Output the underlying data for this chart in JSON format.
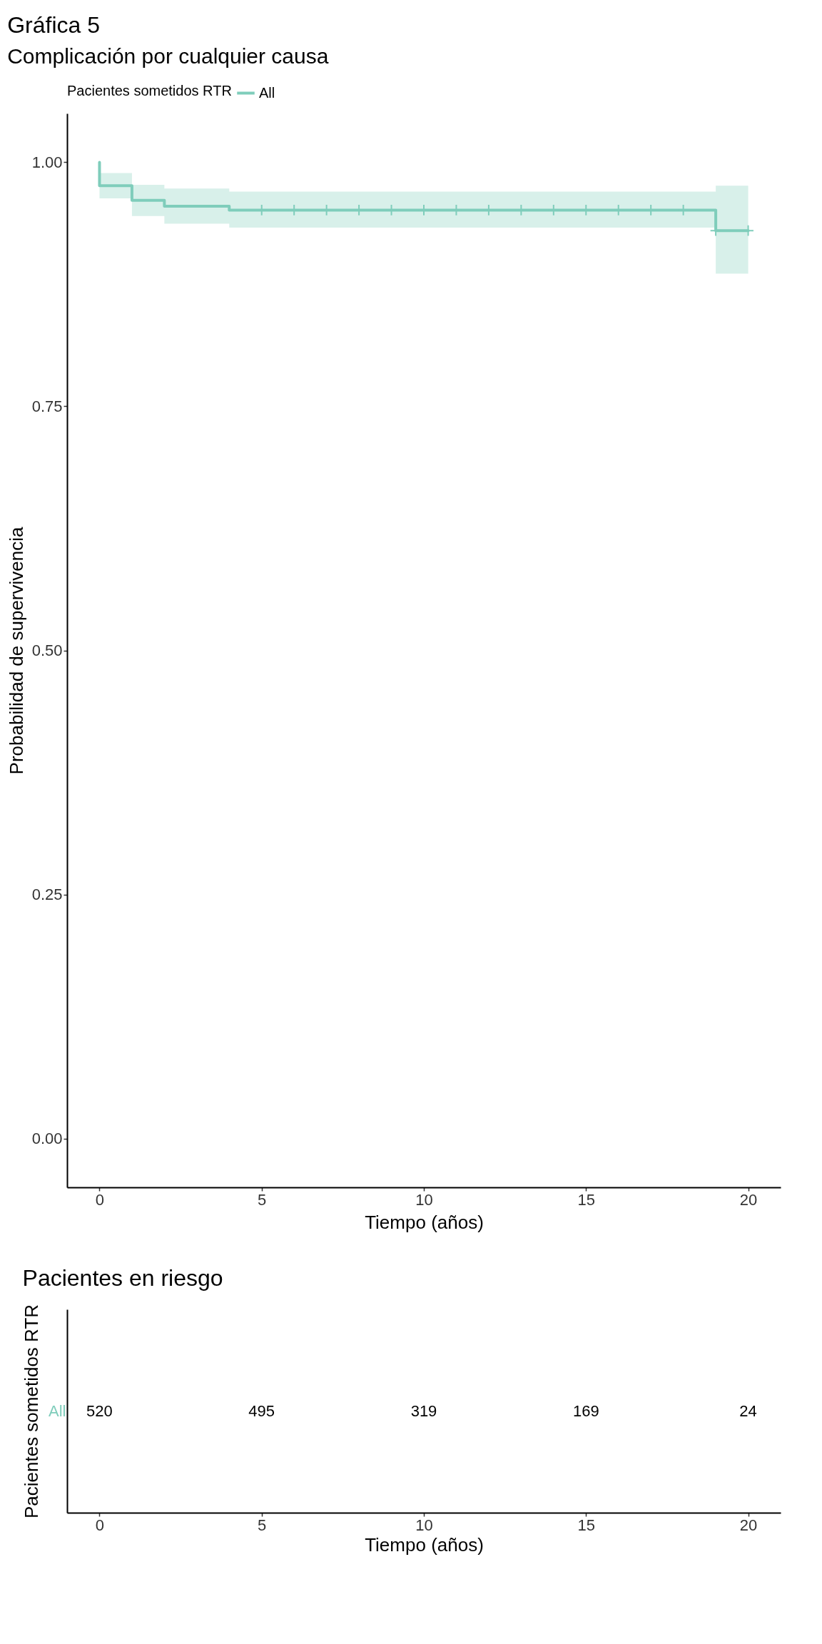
{
  "chart_data": [
    {
      "type": "step",
      "title": "Gráfica 5",
      "subtitle": "Complicación por cualquier causa",
      "xlabel": "Tiempo (años)",
      "ylabel": "Probabilidad de supervivencia",
      "legend_title": "Pacientes sometidos RTR",
      "legend": "top",
      "grid": false,
      "line_style": "solid",
      "xlim": [
        -1,
        21
      ],
      "xticks": [
        0,
        5,
        10,
        15,
        20
      ],
      "ylim": [
        -0.05,
        1.05
      ],
      "yticks": [
        {
          "value": 0,
          "label": "0.00"
        },
        {
          "value": 0.25,
          "label": "0.25"
        },
        {
          "value": 0.5,
          "label": "0.50"
        },
        {
          "value": 0.75,
          "label": "0.75"
        },
        {
          "value": 1,
          "label": "1.00"
        }
      ],
      "series": [
        {
          "name": "All",
          "color": "#7fcdbb",
          "x": [
            0,
            0,
            1,
            2,
            4,
            19,
            20
          ],
          "values": [
            1,
            0.976,
            0.961,
            0.955,
            0.951,
            0.93,
            0.93
          ],
          "lower": [
            null,
            0.963,
            0.945,
            0.937,
            0.933,
            0.886,
            0.886
          ],
          "upper": [
            null,
            0.989,
            0.977,
            0.973,
            0.97,
            0.976,
            0.976
          ]
        },
        {
          "type": "scatter",
          "marker": "cross",
          "color": "#7fcdbb",
          "x": [
            5,
            6,
            7,
            8,
            9,
            10,
            11,
            12,
            13,
            14,
            15,
            16,
            17,
            18,
            19,
            20
          ],
          "values": [
            0.951,
            0.951,
            0.951,
            0.951,
            0.951,
            0.951,
            0.951,
            0.951,
            0.951,
            0.951,
            0.951,
            0.951,
            0.951,
            0.951,
            0.93,
            0.93
          ]
        }
      ]
    },
    {
      "type": "heatmap",
      "title": "Pacientes en riesgo",
      "xlabel": "Tiempo (años)",
      "ylabel": "Pacientes sometidos RTR",
      "categories": [
        "0",
        "5",
        "10",
        "15",
        "20"
      ],
      "y_categories": [
        "All"
      ],
      "cells": [
        [
          520,
          495,
          319,
          169,
          24
        ]
      ],
      "data_labels": true
    }
  ]
}
